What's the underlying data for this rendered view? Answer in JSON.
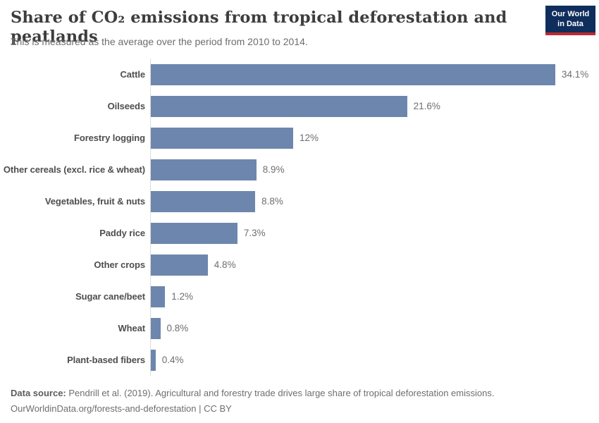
{
  "header": {
    "title": "Share of CO₂ emissions from tropical deforestation and peatlands",
    "subtitle": "This is measured as the average over the period from 2010 to 2014."
  },
  "logo": {
    "line1": "Our World",
    "line2": "in Data",
    "background_color": "#0f2e5c",
    "accent_color": "#bb2b30"
  },
  "chart_data": {
    "type": "bar",
    "orientation": "horizontal",
    "title": "Share of CO₂ emissions from tropical deforestation and peatlands",
    "subtitle": "This is measured as the average over the period from 2010 to 2014.",
    "unit": "%",
    "categories": [
      "Cattle",
      "Oilseeds",
      "Forestry logging",
      "Other cereals (excl. rice & wheat)",
      "Vegetables, fruit & nuts",
      "Paddy rice",
      "Other crops",
      "Sugar cane/beet",
      "Wheat",
      "Plant-based fibers"
    ],
    "values": [
      34.1,
      21.6,
      12,
      8.9,
      8.8,
      7.3,
      4.8,
      1.2,
      0.8,
      0.4
    ],
    "value_labels": [
      "34.1%",
      "21.6%",
      "12%",
      "8.9%",
      "8.8%",
      "7.3%",
      "4.8%",
      "1.2%",
      "0.8%",
      "0.4%"
    ],
    "xlim": [
      0,
      35
    ],
    "grid": false,
    "bar_color": "#6d86ad",
    "axis_line_color": "#dcdcdc"
  },
  "footer": {
    "source_label": "Data source:",
    "source_text": " Pendrill et al. (2019). Agricultural and forestry trade drives large share of tropical deforestation emissions.",
    "link_line": "OurWorldinData.org/forests-and-deforestation | CC BY"
  }
}
